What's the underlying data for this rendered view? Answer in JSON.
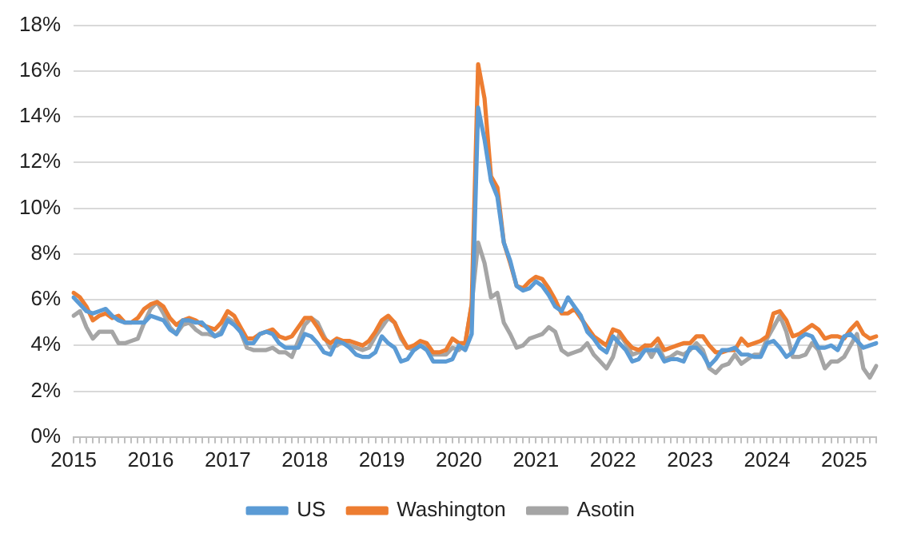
{
  "chart_data": {
    "type": "line",
    "categories": [
      "2015",
      null,
      null,
      null,
      null,
      null,
      null,
      null,
      null,
      null,
      null,
      null,
      "2016",
      null,
      null,
      null,
      null,
      null,
      null,
      null,
      null,
      null,
      null,
      null,
      "2017",
      null,
      null,
      null,
      null,
      null,
      null,
      null,
      null,
      null,
      null,
      null,
      "2018",
      null,
      null,
      null,
      null,
      null,
      null,
      null,
      null,
      null,
      null,
      null,
      "2019",
      null,
      null,
      null,
      null,
      null,
      null,
      null,
      null,
      null,
      null,
      null,
      "2020",
      null,
      null,
      null,
      null,
      null,
      null,
      null,
      null,
      null,
      null,
      null,
      "2021",
      null,
      null,
      null,
      null,
      null,
      null,
      null,
      null,
      null,
      null,
      null,
      "2022",
      null,
      null,
      null,
      null,
      null,
      null,
      null,
      null,
      null,
      null,
      null,
      "2023",
      null,
      null,
      null,
      null,
      null,
      null,
      null,
      null,
      null,
      null,
      null,
      "2024",
      null,
      null,
      null,
      null,
      null,
      null,
      null,
      null,
      null,
      null,
      null,
      "2025",
      null,
      null,
      null,
      null,
      null
    ],
    "series": [
      {
        "name": "US",
        "color": "#5b9bd5",
        "values": [
          6.1,
          5.8,
          5.5,
          5.4,
          5.5,
          5.6,
          5.3,
          5.1,
          5.0,
          5.0,
          5.0,
          5.0,
          5.3,
          5.2,
          5.1,
          4.7,
          4.5,
          5.1,
          5.1,
          5.0,
          5.0,
          4.7,
          4.4,
          4.5,
          5.1,
          4.9,
          4.6,
          4.1,
          4.1,
          4.5,
          4.6,
          4.5,
          4.1,
          3.9,
          3.9,
          3.9,
          4.5,
          4.4,
          4.1,
          3.7,
          3.6,
          4.2,
          4.1,
          3.9,
          3.6,
          3.5,
          3.5,
          3.7,
          4.4,
          4.1,
          3.9,
          3.3,
          3.4,
          3.8,
          4.0,
          3.8,
          3.3,
          3.3,
          3.3,
          3.4,
          4.0,
          3.8,
          4.5,
          14.4,
          13.0,
          11.2,
          10.5,
          8.5,
          7.7,
          6.6,
          6.4,
          6.5,
          6.8,
          6.6,
          6.2,
          5.7,
          5.5,
          6.1,
          5.7,
          5.3,
          4.6,
          4.3,
          3.9,
          3.7,
          4.4,
          4.1,
          3.8,
          3.3,
          3.4,
          3.8,
          3.8,
          3.8,
          3.3,
          3.4,
          3.4,
          3.3,
          3.9,
          3.9,
          3.6,
          3.1,
          3.4,
          3.8,
          3.8,
          3.9,
          3.6,
          3.6,
          3.5,
          3.5,
          4.1,
          4.2,
          3.9,
          3.5,
          3.7,
          4.3,
          4.5,
          4.4,
          3.9,
          3.9,
          4.0,
          3.8,
          4.4,
          4.5,
          4.2,
          3.9,
          4.0,
          4.1
        ]
      },
      {
        "name": "Washington",
        "color": "#ed7d31",
        "values": [
          6.3,
          6.1,
          5.7,
          5.1,
          5.3,
          5.4,
          5.2,
          5.3,
          5.0,
          5.0,
          5.2,
          5.6,
          5.8,
          5.9,
          5.7,
          5.2,
          4.9,
          5.1,
          5.2,
          5.1,
          4.9,
          4.8,
          4.7,
          5.0,
          5.5,
          5.3,
          4.8,
          4.3,
          4.3,
          4.5,
          4.6,
          4.7,
          4.4,
          4.3,
          4.4,
          4.8,
          5.2,
          5.2,
          4.8,
          4.3,
          4.1,
          4.3,
          4.2,
          4.2,
          4.1,
          4.0,
          4.2,
          4.6,
          5.1,
          5.3,
          5.0,
          4.4,
          3.9,
          4.0,
          4.2,
          4.1,
          3.7,
          3.7,
          3.8,
          4.3,
          4.1,
          4.1,
          5.8,
          16.3,
          14.8,
          11.4,
          10.9,
          8.5,
          7.6,
          6.6,
          6.5,
          6.8,
          7.0,
          6.9,
          6.5,
          6.0,
          5.4,
          5.4,
          5.6,
          5.2,
          4.8,
          4.4,
          4.2,
          4.0,
          4.7,
          4.6,
          4.2,
          3.9,
          3.8,
          4.0,
          4.0,
          4.3,
          3.8,
          3.9,
          4.0,
          4.1,
          4.1,
          4.4,
          4.4,
          4.0,
          3.7,
          3.7,
          3.8,
          3.8,
          4.3,
          4.0,
          4.1,
          4.2,
          4.4,
          5.4,
          5.5,
          5.1,
          4.4,
          4.5,
          4.7,
          4.9,
          4.7,
          4.3,
          4.4,
          4.4,
          4.3,
          4.7,
          5.0,
          4.5,
          4.3,
          4.4
        ]
      },
      {
        "name": "Asotin",
        "color": "#a5a5a5",
        "values": [
          5.3,
          5.5,
          4.8,
          4.3,
          4.6,
          4.6,
          4.6,
          4.1,
          4.1,
          4.2,
          4.3,
          5.0,
          5.6,
          5.9,
          5.4,
          4.8,
          4.5,
          4.9,
          5.0,
          4.7,
          4.5,
          4.5,
          4.4,
          4.6,
          5.2,
          5.0,
          4.6,
          3.9,
          3.8,
          3.8,
          3.8,
          3.9,
          3.7,
          3.7,
          3.5,
          4.2,
          4.9,
          5.2,
          5.0,
          4.4,
          3.9,
          4.0,
          4.2,
          4.0,
          3.9,
          3.8,
          3.9,
          4.4,
          4.8,
          5.2,
          5.0,
          4.3,
          3.9,
          3.8,
          4.0,
          3.9,
          3.6,
          3.6,
          3.6,
          3.9,
          3.8,
          4.1,
          5.8,
          8.5,
          7.6,
          6.1,
          6.3,
          5.0,
          4.5,
          3.9,
          4.0,
          4.3,
          4.4,
          4.5,
          4.8,
          4.6,
          3.8,
          3.6,
          3.7,
          3.8,
          4.1,
          3.6,
          3.3,
          3.0,
          3.5,
          4.5,
          4.1,
          3.6,
          3.7,
          4.0,
          3.5,
          4.0,
          3.4,
          3.5,
          3.7,
          3.6,
          3.8,
          4.1,
          3.8,
          3.0,
          2.8,
          3.1,
          3.2,
          3.6,
          3.2,
          3.4,
          3.6,
          3.6,
          4.3,
          4.8,
          5.3,
          4.6,
          3.5,
          3.5,
          3.6,
          4.1,
          3.8,
          3.0,
          3.3,
          3.3,
          3.5,
          4.0,
          4.5,
          3.0,
          2.6,
          3.1
        ]
      }
    ],
    "ylim": [
      0,
      18
    ],
    "yticks": [
      {
        "value": 0,
        "label": "0%"
      },
      {
        "value": 2,
        "label": "2%"
      },
      {
        "value": 4,
        "label": "4%"
      },
      {
        "value": 6,
        "label": "6%"
      },
      {
        "value": 8,
        "label": "8%"
      },
      {
        "value": 10,
        "label": "10%"
      },
      {
        "value": 12,
        "label": "12%"
      },
      {
        "value": 14,
        "label": "14%"
      },
      {
        "value": 16,
        "label": "16%"
      },
      {
        "value": 18,
        "label": "18%"
      }
    ],
    "grid": "y",
    "legend": "bottom",
    "marker": "none",
    "line_style": "solid"
  }
}
